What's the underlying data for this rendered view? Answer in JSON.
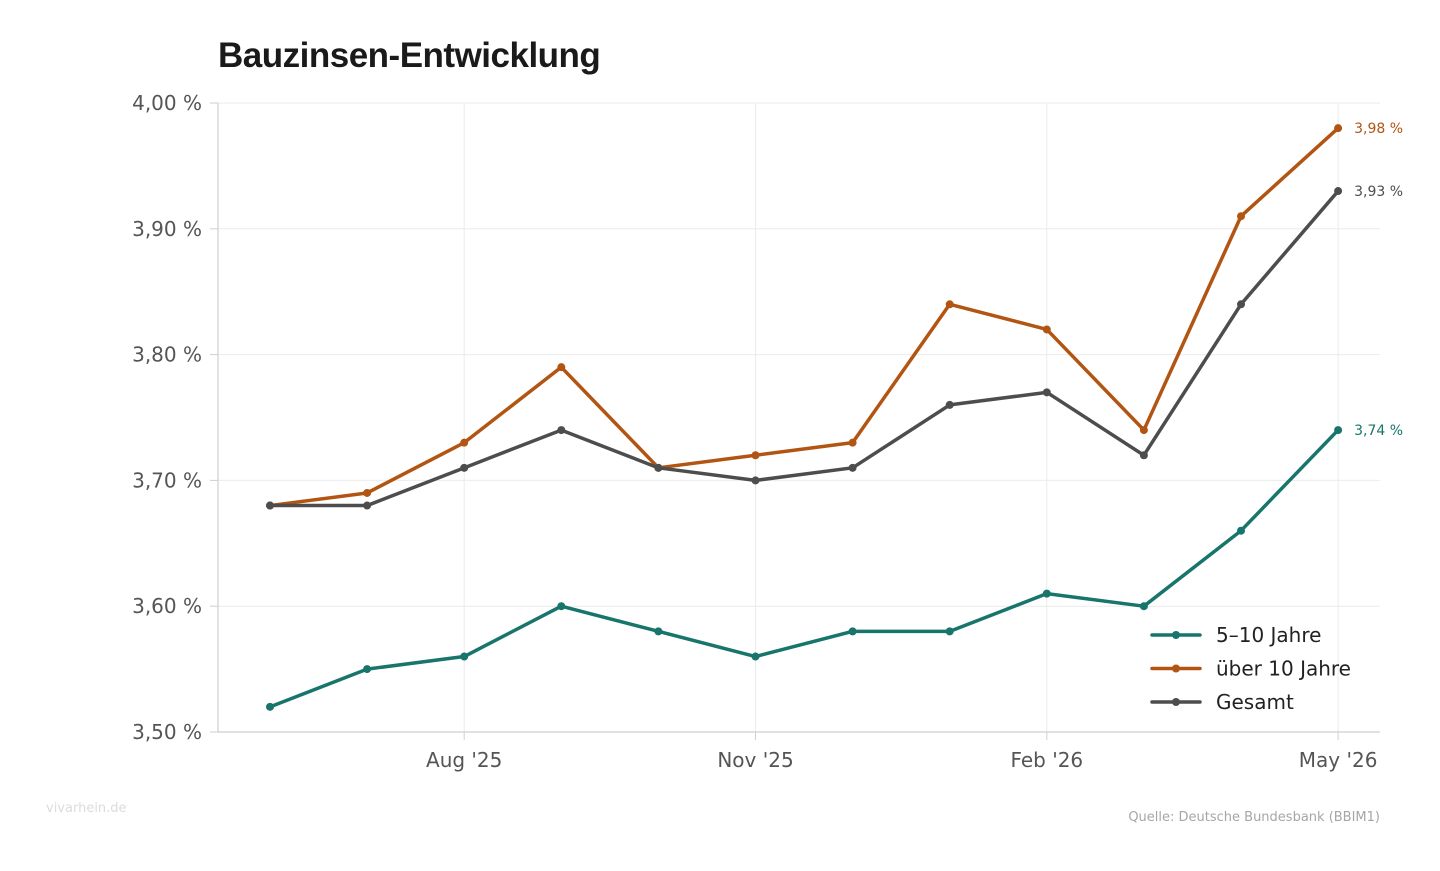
{
  "chart_data": {
    "type": "line",
    "title": "Bauzinsen-Entwicklung",
    "xlabel": "",
    "ylabel": "",
    "ylim": [
      3.5,
      4.0
    ],
    "grid": true,
    "legend_position": "bottom-right",
    "y_ticks": [
      3.5,
      3.6,
      3.7,
      3.8,
      3.9,
      4.0
    ],
    "y_tick_labels": [
      "3,50 %",
      "3,60 %",
      "3,70 %",
      "3,80 %",
      "3,90 %",
      "4,00 %"
    ],
    "x": [
      "2025-06",
      "2025-07",
      "2025-08",
      "2025-09",
      "2025-10",
      "2025-11",
      "2025-12",
      "2026-01",
      "2026-02",
      "2026-03",
      "2026-04",
      "2026-05"
    ],
    "x_ticks": [
      "2025-08",
      "2025-11",
      "2026-02",
      "2026-05"
    ],
    "x_tick_labels": [
      "Aug '25",
      "Nov '25",
      "Feb '26",
      "May '26"
    ],
    "series": [
      {
        "name": "5–10 Jahre",
        "color": "#17756b",
        "values": [
          3.52,
          3.55,
          3.56,
          3.6,
          3.58,
          3.56,
          3.58,
          3.58,
          3.61,
          3.6,
          3.66,
          3.74
        ],
        "end_label": "3,74 %"
      },
      {
        "name": "über 10 Jahre",
        "color": "#b25512",
        "values": [
          3.68,
          3.69,
          3.73,
          3.79,
          3.71,
          3.72,
          3.73,
          3.84,
          3.82,
          3.74,
          3.91,
          3.98
        ],
        "end_label": "3,98 %"
      },
      {
        "name": "Gesamt",
        "color": "#4d4d4d",
        "values": [
          3.68,
          3.68,
          3.71,
          3.74,
          3.71,
          3.7,
          3.71,
          3.76,
          3.77,
          3.72,
          3.84,
          3.93
        ],
        "end_label": "3,93 %"
      }
    ]
  },
  "footer": {
    "watermark": "vivarhein.de",
    "source": "Quelle: Deutsche Bundesbank (BBIM1)"
  }
}
